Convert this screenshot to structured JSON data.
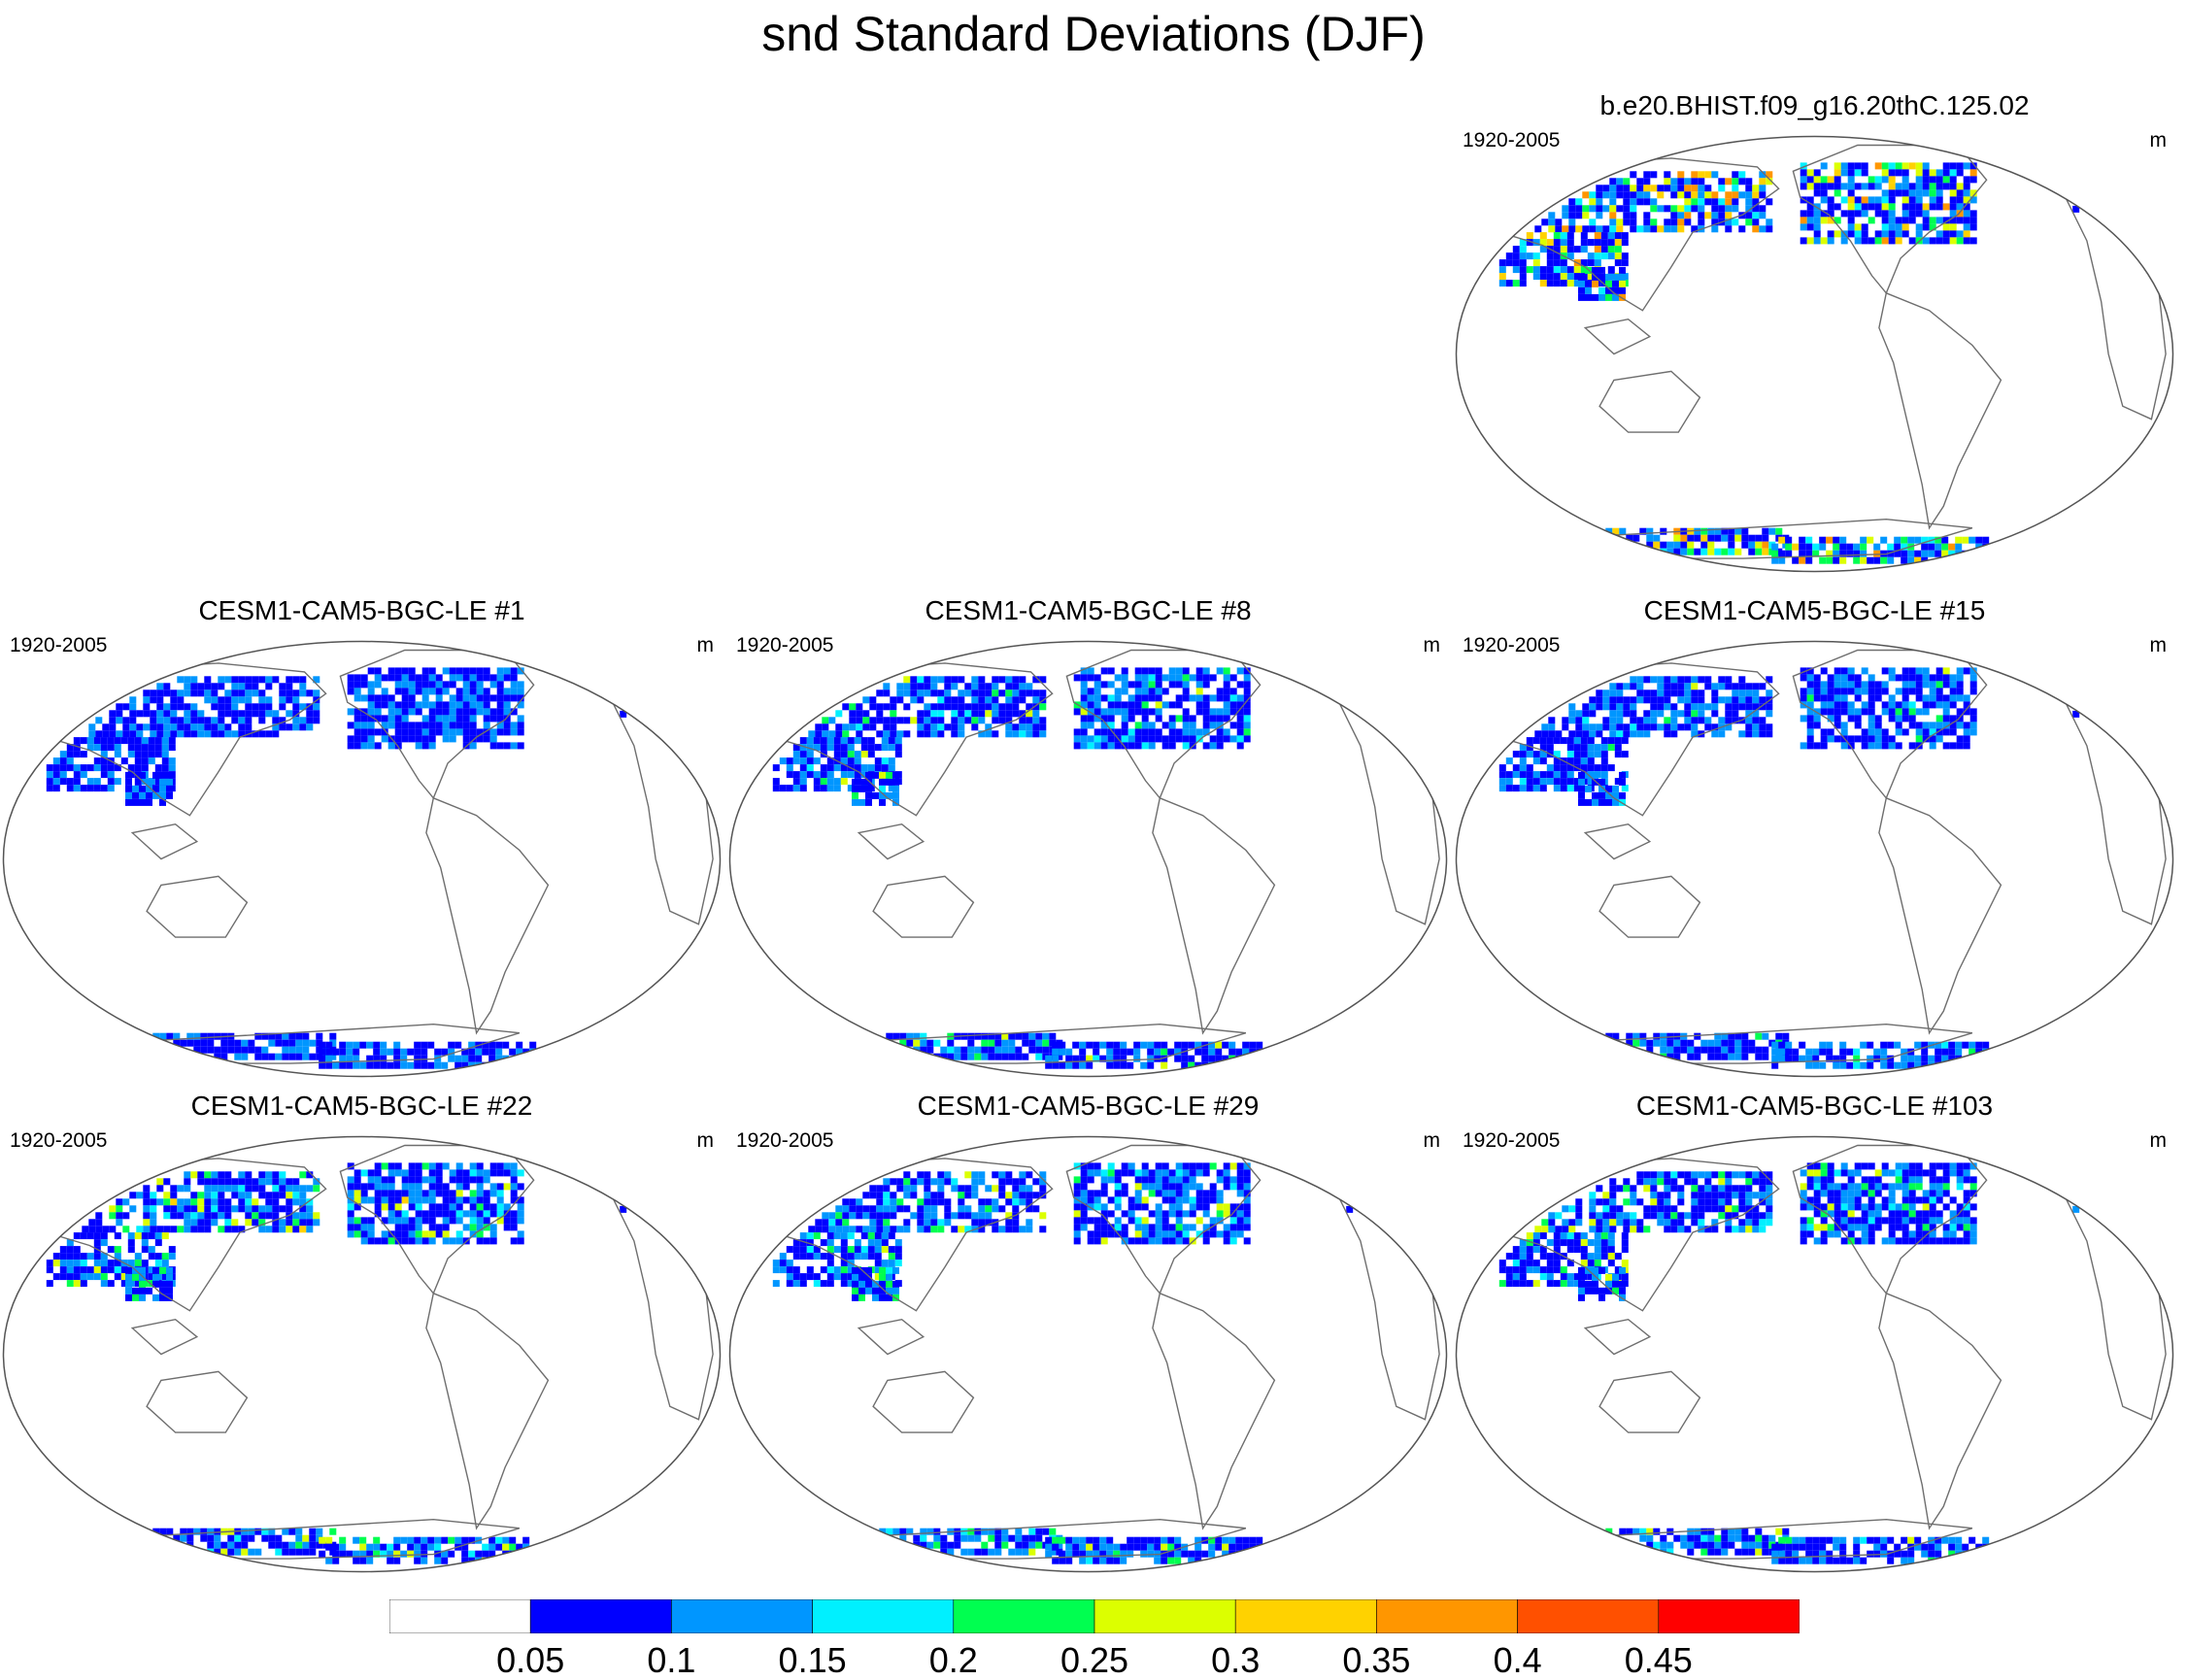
{
  "title": "snd Standard Deviations (DJF)",
  "panels": [
    {
      "title": "b.e20.BHIST.f09_g16.20thC.125.02",
      "period": "1920-2005",
      "units": "m",
      "intensity": 1.25
    },
    {
      "title": "CESM1-CAM5-BGC-LE #1",
      "period": "1920-2005",
      "units": "m",
      "intensity": 0.85
    },
    {
      "title": "CESM1-CAM5-BGC-LE #8",
      "period": "1920-2005",
      "units": "m",
      "intensity": 0.95
    },
    {
      "title": "CESM1-CAM5-BGC-LE #15",
      "period": "1920-2005",
      "units": "m",
      "intensity": 0.9
    },
    {
      "title": "CESM1-CAM5-BGC-LE #22",
      "period": "1920-2005",
      "units": "m",
      "intensity": 1.05
    },
    {
      "title": "CESM1-CAM5-BGC-LE #29",
      "period": "1920-2005",
      "units": "m",
      "intensity": 1.0
    },
    {
      "title": "CESM1-CAM5-BGC-LE #103",
      "period": "1920-2005",
      "units": "m",
      "intensity": 1.0
    }
  ],
  "colorbar": {
    "labels": [
      "0.05",
      "0.1",
      "0.15",
      "0.2",
      "0.25",
      "0.3",
      "0.35",
      "0.4",
      "0.45"
    ],
    "colors": [
      "#ffffff",
      "#0000ff",
      "#0096ff",
      "#00f0ff",
      "#00ff50",
      "#dcff00",
      "#ffd200",
      "#ff9600",
      "#ff5000",
      "#ff0000"
    ]
  }
}
